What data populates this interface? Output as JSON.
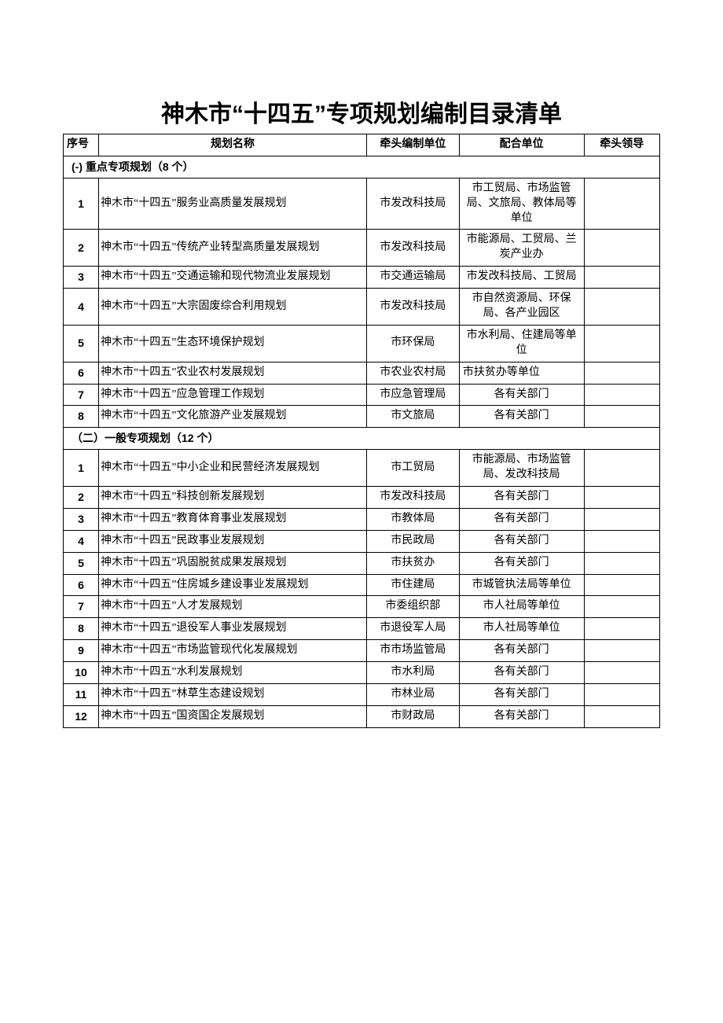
{
  "title": "神木市“十四五”专项规划编制目录清单",
  "headers": {
    "no": "序号",
    "name": "规划名称",
    "lead": "牵头编制单位",
    "coop": "配合单位",
    "head": "牵头领导"
  },
  "section1": {
    "label": "(-) 重点专项规划（8 个）",
    "rows": [
      {
        "no": "1",
        "name": "神木市“十四五”服务业高质量发展规划",
        "lead": "市发改科技局",
        "coop": "市工贸局、市场监管局、文旅局、教体局等单位"
      },
      {
        "no": "2",
        "name": "神木市“十四五”传统产业转型高质量发展规划",
        "lead": "市发改科技局",
        "coop": "市能源局、工贸局、兰炭产业办"
      },
      {
        "no": "3",
        "name": "神木市“十四五”交通运输和现代物流业发展规划",
        "lead": "市交通运输局",
        "coop": "市发改科技局、工贸局"
      },
      {
        "no": "4",
        "name": "神木市“十四五”大宗固废综合利用规划",
        "lead": "市发改科技局",
        "coop": "市自然资源局、环保局、各产业园区"
      },
      {
        "no": "5",
        "name": "神木市“十四五”生态环境保护规划",
        "lead": "市环保局",
        "coop": "市水利局、住建局等单位"
      },
      {
        "no": "6",
        "name": "神木市“十四五”农业农村发展规划",
        "lead": "市农业农村局",
        "coop": "市扶贫办等单位",
        "coopAlign": "left"
      },
      {
        "no": "7",
        "name": "神木市“十四五”应急管理工作规划",
        "lead": "市应急管理局",
        "coop": "各有关部门"
      },
      {
        "no": "8",
        "name": "神木市“十四五”文化旅游产业发展规划",
        "lead": "市文旅局",
        "coop": "各有关部门"
      }
    ]
  },
  "section2": {
    "label": "（二）一般专项规划（12 个）",
    "rows": [
      {
        "no": "1",
        "name": "神木市“十四五”中小企业和民营经济发展规划",
        "lead": "市工贸局",
        "coop": "市能源局、市场监管局、发改科技局"
      },
      {
        "no": "2",
        "name": "神木市“十四五”科技创新发展规划",
        "lead": "市发改科技局",
        "coop": "各有关部门"
      },
      {
        "no": "3",
        "name": "神木市“十四五”教育体育事业发展规划",
        "lead": "市教体局",
        "coop": "各有关部门"
      },
      {
        "no": "4",
        "name": "神木市“十四五”民政事业发展规划",
        "lead": "市民政局",
        "coop": "各有关部门"
      },
      {
        "no": "5",
        "name": "神木市“十四五”巩固脱贫成果发展规划",
        "lead": "市扶贫办",
        "coop": "各有关部门"
      },
      {
        "no": "6",
        "name": "神木市“十四五”住房城乡建设事业发展规划",
        "lead": "市住建局",
        "coop": "市城管执法局等单位"
      },
      {
        "no": "7",
        "name": "神木市“十四五”人才发展规划",
        "lead": "市委组织部",
        "coop": "市人社局等单位"
      },
      {
        "no": "8",
        "name": "神木市“十四五”退役军人事业发展规划",
        "lead": "市退役军人局",
        "coop": "市人社局等单位"
      },
      {
        "no": "9",
        "name": "神木市“十四五”市场监管现代化发展规划",
        "lead": "市市场监管局",
        "coop": "各有关部门"
      },
      {
        "no": "10",
        "name": "神木市“十四五”水利发展规划",
        "lead": "市水利局",
        "coop": "各有关部门"
      },
      {
        "no": "11",
        "name": "神木市“十四五”林草生态建设规划",
        "lead": "市林业局",
        "coop": "各有关部门"
      },
      {
        "no": "12",
        "name": "神木市“十四五”国资国企发展规划",
        "lead": "市财政局",
        "coop": "各有关部门"
      }
    ]
  }
}
